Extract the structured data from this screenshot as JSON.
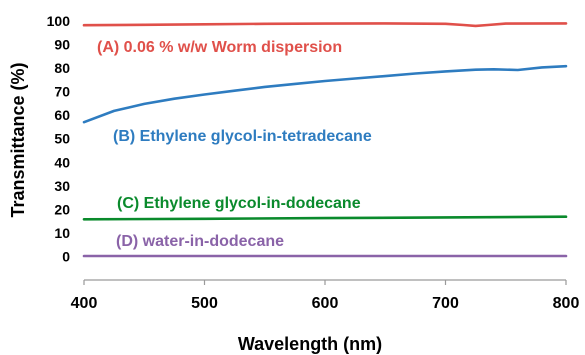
{
  "chart_data": {
    "type": "line",
    "xlabel": "Wavelength (nm)",
    "ylabel": "Transmittance (%)",
    "xlim": [
      400,
      800
    ],
    "ylim": [
      -10,
      100
    ],
    "x_ticks": [
      "400",
      "500",
      "600",
      "700",
      "800"
    ],
    "y_ticks": [
      "0",
      "10",
      "20",
      "30",
      "40",
      "50",
      "60",
      "70",
      "80",
      "90",
      "100"
    ],
    "grid": false,
    "series": [
      {
        "name": "(A) 0.06 % w/w Worm dispersion",
        "color": "#e0504a",
        "x": [
          400,
          450,
          500,
          550,
          600,
          650,
          700,
          715,
          725,
          735,
          750,
          800
        ],
        "y": [
          98.2,
          98.4,
          98.6,
          98.8,
          98.9,
          99.0,
          98.8,
          98.3,
          97.9,
          98.3,
          98.9,
          99.0
        ]
      },
      {
        "name": "(B) Ethylene glycol-in-tetradecane",
        "color": "#2e7cc0",
        "x": [
          400,
          425,
          450,
          475,
          500,
          525,
          550,
          575,
          600,
          625,
          650,
          675,
          700,
          725,
          740,
          760,
          780,
          800
        ],
        "y": [
          57.0,
          61.8,
          64.8,
          67.0,
          68.8,
          70.4,
          72.0,
          73.3,
          74.5,
          75.6,
          76.6,
          77.7,
          78.6,
          79.3,
          79.5,
          79.2,
          80.3,
          80.8
        ]
      },
      {
        "name": "(C) Ethylene glycol-in-dodecane",
        "color": "#0a8a2c",
        "x": [
          400,
          500,
          600,
          700,
          800
        ],
        "y": [
          15.8,
          16.0,
          16.3,
          16.6,
          16.9
        ]
      },
      {
        "name": "(D) water-in-dodecane",
        "color": "#8a63a8",
        "x": [
          400,
          800
        ],
        "y": [
          0.2,
          0.2
        ]
      }
    ]
  }
}
